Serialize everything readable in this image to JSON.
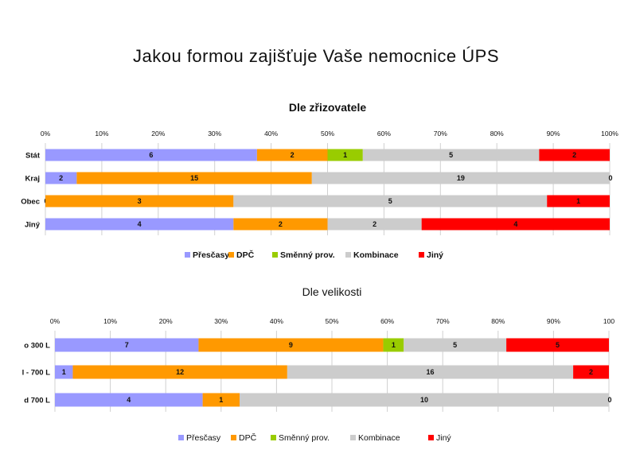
{
  "slide": {
    "title": "Jakou formou zajišťuje Vaše nemocnice ÚPS"
  },
  "colors": {
    "Přesčasy": "#9999ff",
    "DPČ": "#ff9900",
    "Směnný prov.": "#99cc00",
    "Kombinace": "#cccccc",
    "Jiný": "#ff0000"
  },
  "chart_data": [
    {
      "type": "bar",
      "orientation": "horizontal",
      "stacked": "percent",
      "title": "Dle zřizovatele",
      "ticks": [
        "0%",
        "10%",
        "20%",
        "30%",
        "40%",
        "50%",
        "60%",
        "70%",
        "80%",
        "90%",
        "100%"
      ],
      "xlim": [
        0,
        100
      ],
      "legend_position": "bottom",
      "categories": [
        "Stát",
        "Kraj",
        "Obec",
        "Jiný"
      ],
      "series": [
        {
          "name": "Přesčasy",
          "values": [
            6,
            2,
            0,
            4
          ]
        },
        {
          "name": "DPČ",
          "values": [
            2,
            15,
            3,
            2
          ]
        },
        {
          "name": "Směnný prov.",
          "values": [
            1,
            0,
            0,
            0
          ]
        },
        {
          "name": "Kombinace",
          "values": [
            5,
            19,
            5,
            2
          ]
        },
        {
          "name": "Jiný",
          "values": [
            2,
            0,
            1,
            4
          ]
        }
      ]
    },
    {
      "type": "bar",
      "orientation": "horizontal",
      "stacked": "percent",
      "title": "Dle velikosti",
      "ticks": [
        "0%",
        "10%",
        "20%",
        "30%",
        "40%",
        "50%",
        "60%",
        "70%",
        "80%",
        "90%",
        "100"
      ],
      "xlim": [
        0,
        100
      ],
      "legend_position": "bottom",
      "categories": [
        "o 300 L",
        "l - 700 L",
        "d 700 L"
      ],
      "series": [
        {
          "name": "Přesčasy",
          "values": [
            7,
            1,
            4
          ]
        },
        {
          "name": "DPČ",
          "values": [
            9,
            12,
            1
          ]
        },
        {
          "name": "Směnný prov.",
          "values": [
            1,
            0,
            0
          ]
        },
        {
          "name": "Kombinace",
          "values": [
            5,
            16,
            10
          ]
        },
        {
          "name": "Jiný",
          "values": [
            5,
            2,
            0
          ]
        }
      ]
    }
  ]
}
